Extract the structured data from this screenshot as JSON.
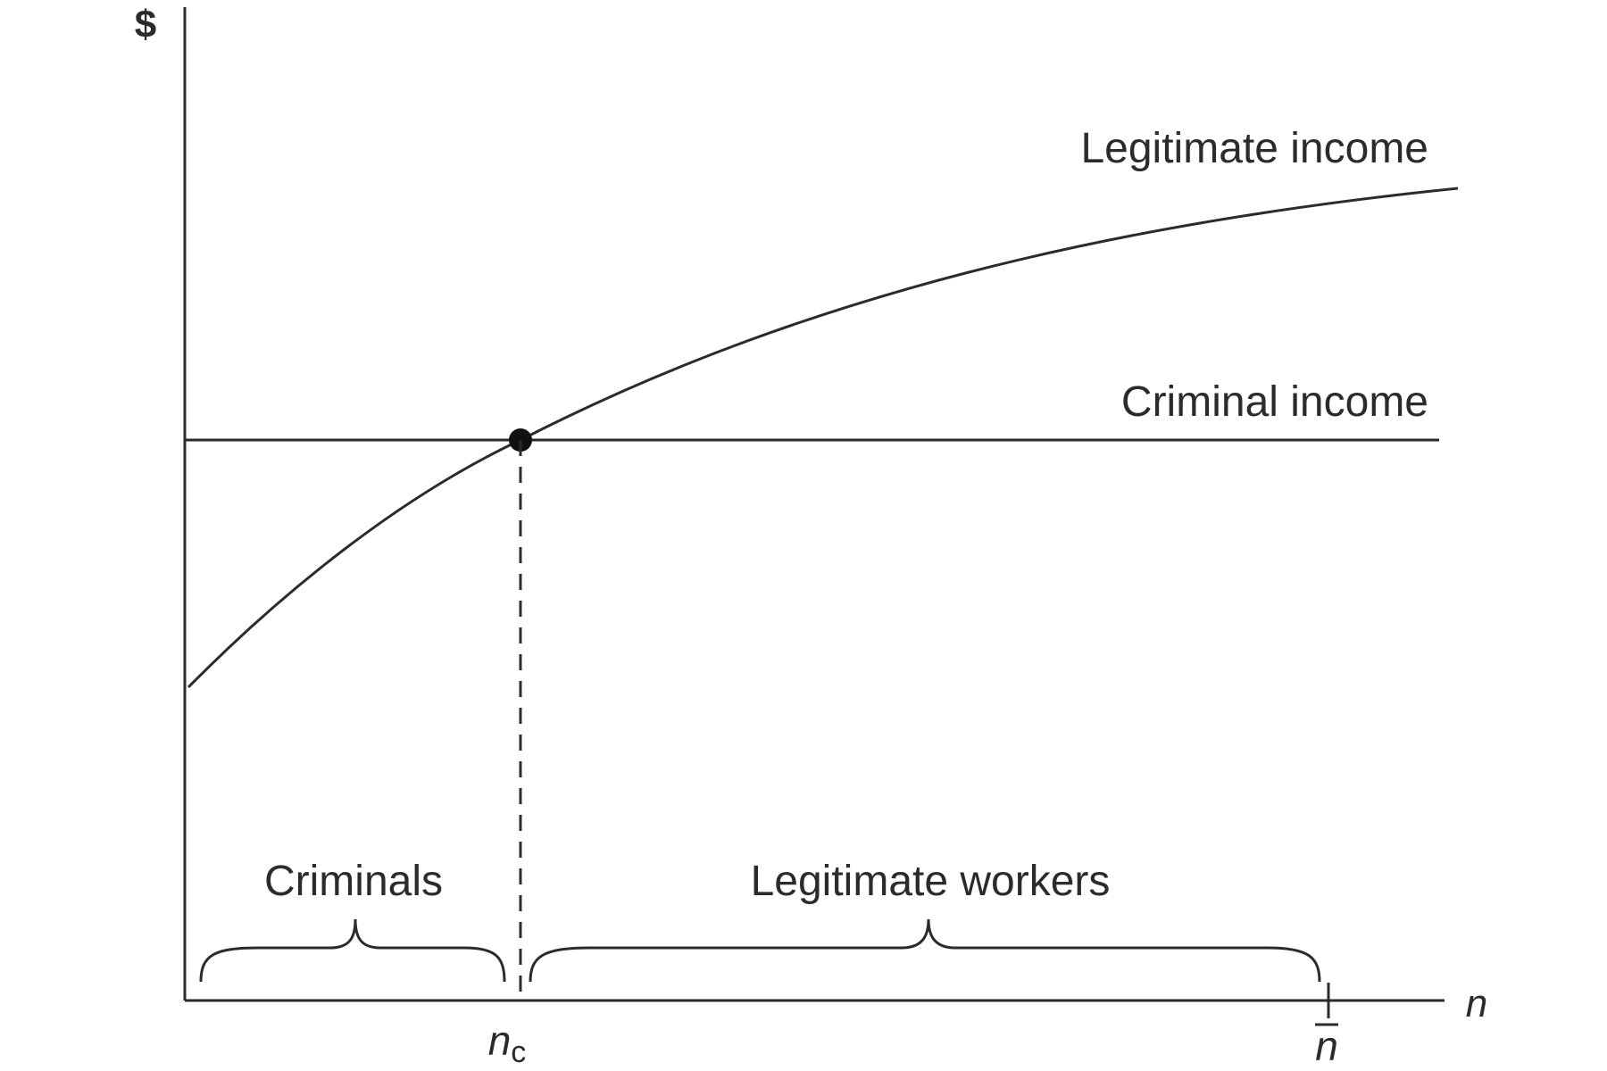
{
  "diagram": {
    "y_axis_label": "$",
    "x_axis_label": "n",
    "curves": {
      "legitimate": "Legitimate income",
      "criminal": "Criminal income"
    },
    "groups": {
      "left": "Criminals",
      "right": "Legitimate workers"
    },
    "ticks": {
      "threshold_main": "n",
      "threshold_sub": "c",
      "max": "n"
    }
  }
}
